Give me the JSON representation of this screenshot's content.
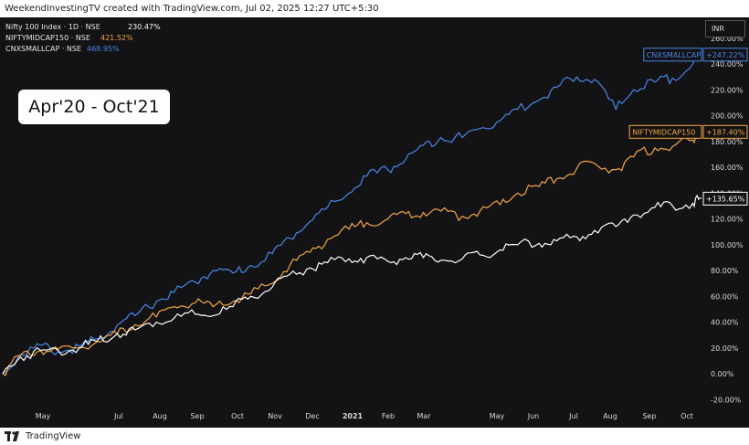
{
  "header": {
    "caption": "WeekendInvestingTV created with TradingView.com, Jul 02, 2025 12:27 UTC+5:30"
  },
  "footer": {
    "brand": "TradingView"
  },
  "annotation": {
    "text": "Apr'20 - Oct'21"
  },
  "currency_button": "INR",
  "colors": {
    "background": "#131316",
    "nifty100": "#ffffff",
    "midcap": "#f5a742",
    "smallcap": "#4a86e8"
  },
  "chart_data": {
    "type": "line",
    "legend": [
      {
        "symbol": "Nifty 100 Index · 1D · NSE",
        "value": "230.47%"
      },
      {
        "symbol": "NIFTYMIDCAP150 · NSE",
        "value": "421.52%"
      },
      {
        "symbol": "CNXSMALLCAP · NSE",
        "value": "468.95%"
      }
    ],
    "x_tick_labels": [
      "May",
      "Jul",
      "Aug",
      "Sep",
      "Oct",
      "Nov",
      "Dec",
      "2021",
      "Feb",
      "Mar",
      "May",
      "Jun",
      "Jul",
      "Aug",
      "Sep",
      "Oct"
    ],
    "y_tick_labels": [
      "-20.00%",
      "0.00%",
      "20.00%",
      "40.00%",
      "60.00%",
      "80.00%",
      "100.00%",
      "120.00%",
      "140.00%",
      "160.00%",
      "180.00%",
      "200.00%",
      "220.00%",
      "240.00%",
      "260.00%"
    ],
    "y_ticks": [
      -20,
      0,
      20,
      40,
      60,
      80,
      100,
      120,
      140,
      160,
      180,
      200,
      220,
      240,
      260
    ],
    "ylim": [
      -24,
      265
    ],
    "grid": false,
    "price_labels": [
      {
        "name": "CNXSMALLCAP",
        "value": "+247.22%",
        "level": 247.22
      },
      {
        "name": "NIFTYMIDCAP150",
        "value": "+187.40%",
        "level": 187.4
      },
      {
        "name": "",
        "value": "+135.65%",
        "level": 135.65
      }
    ],
    "x_dates": [
      "2020-04-01",
      "2020-04-15",
      "2020-05-01",
      "2020-05-15",
      "2020-06-01",
      "2020-06-15",
      "2020-07-01",
      "2020-07-15",
      "2020-08-01",
      "2020-08-15",
      "2020-09-01",
      "2020-09-15",
      "2020-10-01",
      "2020-10-15",
      "2020-11-01",
      "2020-11-15",
      "2020-12-01",
      "2020-12-15",
      "2021-01-01",
      "2021-01-15",
      "2021-02-01",
      "2021-02-15",
      "2021-03-01",
      "2021-03-15",
      "2021-04-01",
      "2021-04-15",
      "2021-05-01",
      "2021-05-15",
      "2021-06-01",
      "2021-06-15",
      "2021-07-01",
      "2021-07-15",
      "2021-08-01",
      "2021-08-15",
      "2021-09-01",
      "2021-09-15",
      "2021-10-01",
      "2021-10-08"
    ],
    "series": [
      {
        "name": "CNXSMALLCAP",
        "color": "#4a86e8",
        "values": [
          0,
          15,
          22,
          17,
          21,
          27,
          38,
          45,
          56,
          63,
          71,
          80,
          78,
          84,
          93,
          105,
          118,
          129,
          140,
          153,
          158,
          166,
          177,
          183,
          183,
          190,
          196,
          205,
          212,
          222,
          230,
          228,
          205,
          220,
          226,
          229,
          240,
          247
        ]
      },
      {
        "name": "NIFTYMIDCAP150",
        "color": "#f5a742",
        "values": [
          0,
          14,
          18,
          19,
          20,
          25,
          31,
          38,
          44,
          52,
          55,
          52,
          56,
          62,
          70,
          84,
          94,
          104,
          112,
          117,
          120,
          124,
          125,
          126,
          122,
          126,
          131,
          140,
          145,
          151,
          159,
          163,
          158,
          168,
          175,
          176,
          181,
          187
        ]
      },
      {
        "name": "Nifty 100 Index",
        "color": "#ffffff",
        "values": [
          0,
          13,
          18,
          18,
          20,
          25,
          31,
          34,
          40,
          43,
          46,
          45,
          52,
          60,
          67,
          77,
          82,
          86,
          89,
          90,
          87,
          90,
          90,
          88,
          89,
          92,
          96,
          100,
          101,
          103,
          106,
          111,
          114,
          123,
          129,
          130,
          132,
          136
        ]
      }
    ]
  }
}
